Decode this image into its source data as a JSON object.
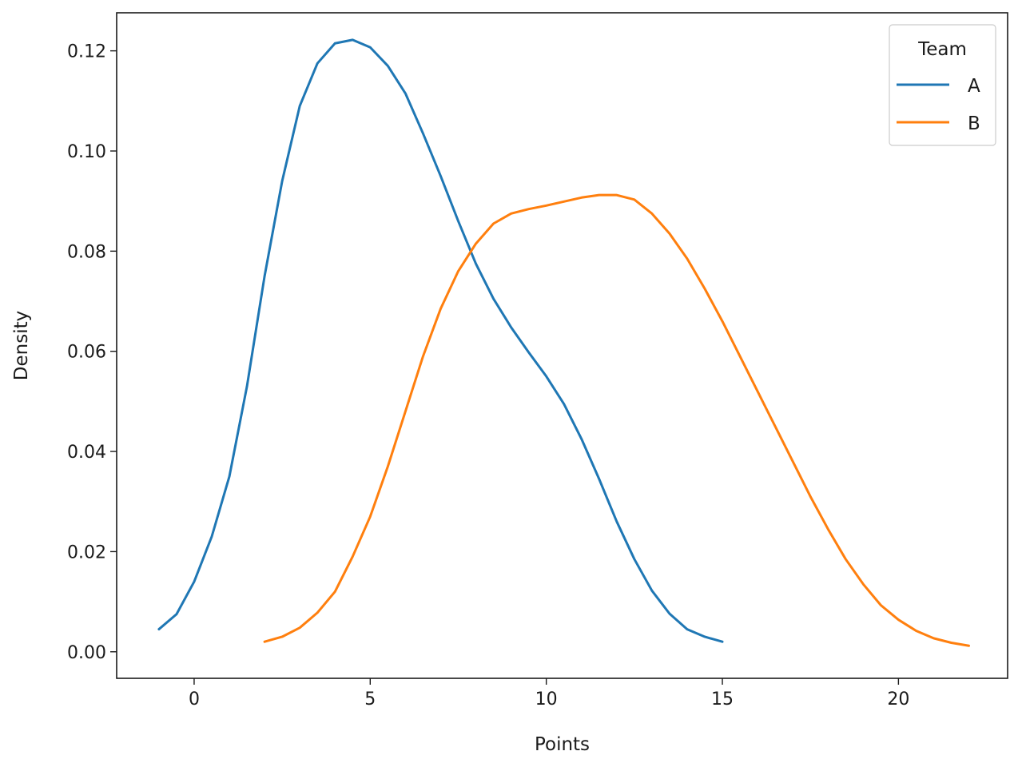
{
  "chart_data": {
    "type": "line",
    "title": "",
    "xlabel": "Points",
    "ylabel": "Density",
    "xlim": [
      -2.2,
      23.1
    ],
    "ylim": [
      -0.0053,
      0.1276
    ],
    "xticks": [
      0,
      5,
      10,
      15,
      20
    ],
    "xtick_labels": [
      "0",
      "5",
      "10",
      "15",
      "20"
    ],
    "yticks": [
      0.0,
      0.02,
      0.04,
      0.06,
      0.08,
      0.1,
      0.12
    ],
    "ytick_labels": [
      "0.00",
      "0.02",
      "0.04",
      "0.06",
      "0.08",
      "0.10",
      "0.12"
    ],
    "grid": false,
    "legend": {
      "title": "Team",
      "position": "top-right"
    },
    "series": [
      {
        "name": "A",
        "color": "#1f77b4",
        "x": [
          -1.0,
          -0.5,
          0.0,
          0.5,
          1.0,
          1.5,
          2.0,
          2.5,
          3.0,
          3.5,
          4.0,
          4.5,
          5.0,
          5.5,
          6.0,
          6.5,
          7.0,
          7.5,
          8.0,
          8.5,
          9.0,
          9.5,
          10.0,
          10.5,
          11.0,
          11.5,
          12.0,
          12.5,
          13.0,
          13.5,
          14.0,
          14.5,
          15.0
        ],
        "y": [
          0.0045,
          0.0075,
          0.014,
          0.023,
          0.035,
          0.053,
          0.075,
          0.094,
          0.109,
          0.1175,
          0.1215,
          0.1222,
          0.1207,
          0.117,
          0.1115,
          0.1035,
          0.095,
          0.086,
          0.0775,
          0.0705,
          0.0648,
          0.0598,
          0.055,
          0.0495,
          0.0425,
          0.0345,
          0.026,
          0.0185,
          0.0122,
          0.0076,
          0.0045,
          0.003,
          0.002
        ]
      },
      {
        "name": "B",
        "color": "#ff7f0e",
        "x": [
          2.0,
          2.5,
          3.0,
          3.5,
          4.0,
          4.5,
          5.0,
          5.5,
          6.0,
          6.5,
          7.0,
          7.5,
          8.0,
          8.5,
          9.0,
          9.5,
          10.0,
          10.5,
          11.0,
          11.5,
          12.0,
          12.5,
          13.0,
          13.5,
          14.0,
          14.5,
          15.0,
          15.5,
          16.0,
          16.5,
          17.0,
          17.5,
          18.0,
          18.5,
          19.0,
          19.5,
          20.0,
          20.5,
          21.0,
          21.5,
          22.0
        ],
        "y": [
          0.002,
          0.003,
          0.0048,
          0.0078,
          0.012,
          0.019,
          0.027,
          0.037,
          0.048,
          0.059,
          0.0685,
          0.076,
          0.0815,
          0.0855,
          0.0875,
          0.0884,
          0.0891,
          0.0899,
          0.0907,
          0.0912,
          0.0912,
          0.0903,
          0.0875,
          0.0835,
          0.0785,
          0.0725,
          0.066,
          0.059,
          0.052,
          0.045,
          0.038,
          0.031,
          0.0245,
          0.0185,
          0.0135,
          0.0093,
          0.0064,
          0.0042,
          0.0027,
          0.0018,
          0.0012
        ]
      }
    ]
  }
}
